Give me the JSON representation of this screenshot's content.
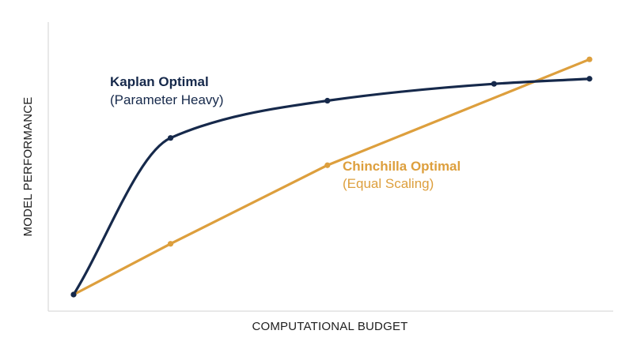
{
  "chart_data": {
    "type": "line",
    "xlabel": "COMPUTATIONAL BUDGET",
    "ylabel": "MODEL PERFORMANCE",
    "xlim": [
      0,
      100
    ],
    "ylim": [
      0,
      100
    ],
    "grid": false,
    "series": [
      {
        "name": "Kaplan Optimal",
        "subtitle": "(Parameter Heavy)",
        "color": "#16294b",
        "x": [
          0,
          18.8,
          49.2,
          81.5,
          100
        ],
        "y": [
          0,
          61.4,
          76.0,
          82.6,
          84.6
        ],
        "label_anchor": "top-left"
      },
      {
        "name": "Chinchilla Optimal",
        "subtitle": "(Equal Scaling)",
        "color": "#dd9f3d",
        "x": [
          0,
          18.8,
          49.2,
          100
        ],
        "y": [
          0,
          19.9,
          50.7,
          92.2
        ],
        "label_anchor": "center-right"
      }
    ]
  }
}
